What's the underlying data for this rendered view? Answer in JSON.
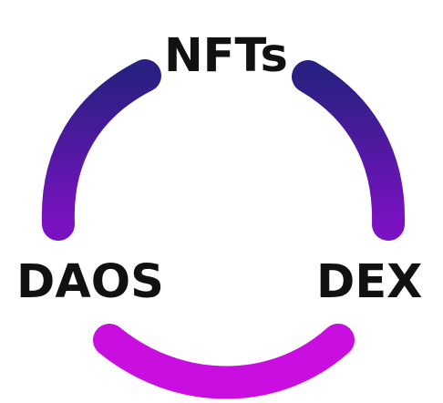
{
  "diagram": {
    "labels": {
      "top": "NFTs",
      "left": "DAOS",
      "right": "DEX"
    },
    "colors": {
      "arc_dark": "#2a1f82",
      "arc_mid": "#6a14b8",
      "arc_bright": "#d60fe6",
      "text": "#111111"
    }
  }
}
